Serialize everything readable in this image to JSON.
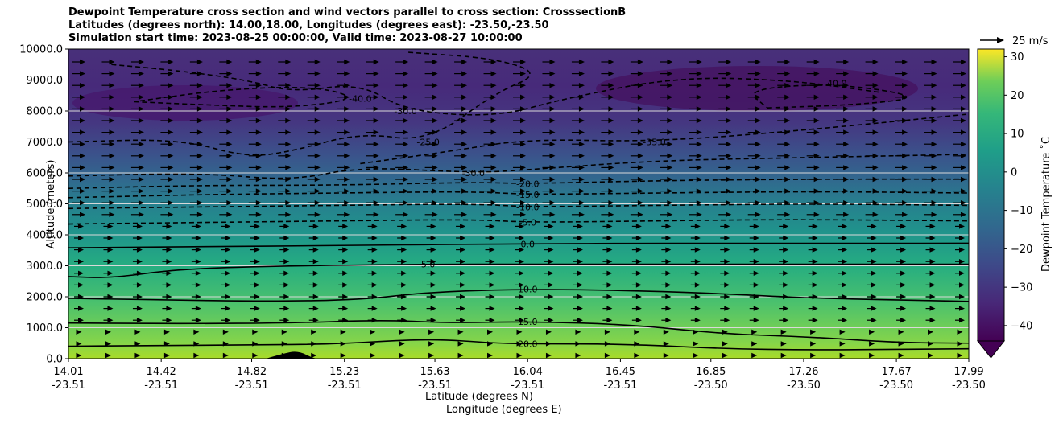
{
  "chart_data": {
    "type": "heatmap",
    "title_lines": [
      "Dewpoint Temperature cross section and wind vectors parallel to cross section: CrosssectionB",
      "Latitudes (degrees north): 14.00,18.00, Longitudes (degrees east): -23.50,-23.50",
      "Simulation start time: 2023-08-25 00:00:00, Valid time: 2023-08-27 10:00:00"
    ],
    "xlabel_lat": "Latitude (degrees N)",
    "xlabel_lon": "Longitude (degrees E)",
    "ylabel": "Altitude (meters)",
    "ylim": [
      0,
      10000
    ],
    "yticks": [
      "0.0",
      "1000.0",
      "2000.0",
      "3000.0",
      "4000.0",
      "5000.0",
      "6000.0",
      "7000.0",
      "8000.0",
      "9000.0",
      "10000.0"
    ],
    "xticks_lat": [
      "14.01",
      "14.42",
      "14.82",
      "15.23",
      "15.63",
      "16.04",
      "16.45",
      "16.85",
      "17.26",
      "17.67",
      "17.99"
    ],
    "xticks_lon": [
      "-23.51",
      "-23.51",
      "-23.51",
      "-23.51",
      "-23.51",
      "-23.51",
      "-23.51",
      "-23.50",
      "-23.50",
      "-23.50",
      "-23.50"
    ],
    "x_range": [
      14.01,
      17.99
    ],
    "colorbar": {
      "label": "Dewpoint Temperature ˚C",
      "range": [
        -44,
        32
      ],
      "ticks": [
        "30",
        "20",
        "10",
        "0",
        "−10",
        "−20",
        "−30",
        "−40"
      ],
      "tick_values": [
        30,
        20,
        10,
        0,
        -10,
        -20,
        -30,
        -40
      ]
    },
    "quiver_key": "25 m/s",
    "contours": [
      {
        "level": 20,
        "label": "20.0",
        "style": "solid",
        "points": [
          [
            14.01,
            400
          ],
          [
            14.3,
            420
          ],
          [
            14.8,
            440
          ],
          [
            15.2,
            470
          ],
          [
            15.6,
            650
          ],
          [
            15.9,
            500
          ],
          [
            16.04,
            480
          ],
          [
            16.5,
            470
          ],
          [
            16.9,
            320
          ],
          [
            17.3,
            280
          ],
          [
            17.67,
            300
          ],
          [
            17.99,
            320
          ]
        ]
      },
      {
        "level": 15,
        "label": "15.0",
        "style": "solid",
        "points": [
          [
            14.01,
            1150
          ],
          [
            14.5,
            1130
          ],
          [
            15.0,
            1150
          ],
          [
            15.4,
            1250
          ],
          [
            15.7,
            1150
          ],
          [
            16.04,
            1200
          ],
          [
            16.5,
            1100
          ],
          [
            16.9,
            800
          ],
          [
            17.3,
            700
          ],
          [
            17.67,
            520
          ],
          [
            17.99,
            500
          ]
        ]
      },
      {
        "level": 10,
        "label": "10.0",
        "style": "solid",
        "points": [
          [
            14.01,
            1950
          ],
          [
            14.4,
            1900
          ],
          [
            14.9,
            1850
          ],
          [
            15.3,
            1900
          ],
          [
            15.6,
            2150
          ],
          [
            16.04,
            2250
          ],
          [
            16.5,
            2200
          ],
          [
            16.9,
            2100
          ],
          [
            17.3,
            1950
          ],
          [
            17.99,
            1850
          ]
        ]
      },
      {
        "level": 5,
        "label": "5.0",
        "style": "solid",
        "points": [
          [
            14.01,
            2650
          ],
          [
            14.2,
            2600
          ],
          [
            14.5,
            2900
          ],
          [
            15.0,
            3000
          ],
          [
            15.6,
            3050
          ],
          [
            16.04,
            3050
          ],
          [
            16.5,
            3050
          ],
          [
            17.0,
            3050
          ],
          [
            17.99,
            3050
          ]
        ]
      },
      {
        "level": 0,
        "label": "0.0",
        "style": "solid",
        "points": [
          [
            14.01,
            3580
          ],
          [
            14.6,
            3620
          ],
          [
            15.2,
            3650
          ],
          [
            15.8,
            3700
          ],
          [
            16.04,
            3700
          ],
          [
            16.5,
            3730
          ],
          [
            17.2,
            3720
          ],
          [
            17.99,
            3730
          ]
        ]
      },
      {
        "level": -5,
        "label": "-5.0",
        "style": "dashed",
        "points": [
          [
            14.01,
            4350
          ],
          [
            14.6,
            4400
          ],
          [
            15.2,
            4450
          ],
          [
            15.8,
            4500
          ],
          [
            16.04,
            4400
          ],
          [
            16.6,
            4450
          ],
          [
            17.2,
            4500
          ],
          [
            17.99,
            4450
          ]
        ]
      },
      {
        "level": -10,
        "label": "-10.0",
        "style": "dashed",
        "points": [
          [
            14.01,
            4850
          ],
          [
            14.6,
            4900
          ],
          [
            15.2,
            4950
          ],
          [
            15.8,
            5000
          ],
          [
            16.04,
            4900
          ],
          [
            16.6,
            4950
          ],
          [
            17.3,
            5000
          ],
          [
            17.99,
            4950
          ]
        ]
      },
      {
        "level": -15,
        "label": "-15.0",
        "style": "dashed",
        "points": [
          [
            14.01,
            5200
          ],
          [
            14.6,
            5300
          ],
          [
            15.2,
            5350
          ],
          [
            15.8,
            5400
          ],
          [
            16.04,
            5300
          ],
          [
            16.6,
            5350
          ],
          [
            17.3,
            5400
          ],
          [
            17.99,
            5350
          ]
        ]
      },
      {
        "level": -20,
        "label": "-20.0",
        "style": "dashed",
        "points": [
          [
            14.01,
            5500
          ],
          [
            14.6,
            5600
          ],
          [
            15.2,
            5600
          ],
          [
            15.8,
            5700
          ],
          [
            16.04,
            5650
          ],
          [
            16.6,
            5750
          ],
          [
            17.3,
            5800
          ],
          [
            17.99,
            5800
          ]
        ]
      },
      {
        "level": -30,
        "label": "-30.0",
        "style": "dashed",
        "points": [
          [
            14.01,
            5900
          ],
          [
            14.6,
            6000
          ],
          [
            15.0,
            5750
          ],
          [
            15.3,
            6200
          ],
          [
            15.8,
            6000
          ],
          [
            16.04,
            6100
          ],
          [
            16.6,
            6400
          ],
          [
            17.3,
            6500
          ],
          [
            17.99,
            6600
          ]
        ]
      },
      {
        "level": -35,
        "label": "-35.0",
        "style": "dashed",
        "points": [
          [
            15.3,
            6300
          ],
          [
            15.7,
            6700
          ],
          [
            16.04,
            7100
          ],
          [
            16.6,
            7000
          ],
          [
            17.3,
            7400
          ],
          [
            17.99,
            7900
          ]
        ]
      },
      {
        "level": -25,
        "label": "-25.0",
        "style": "dashed",
        "points": [
          [
            14.01,
            7000
          ],
          [
            14.5,
            7100
          ],
          [
            14.8,
            6500
          ],
          [
            15.0,
            6700
          ],
          [
            15.3,
            7300
          ],
          [
            15.6,
            7000
          ],
          [
            15.9,
            8600
          ],
          [
            16.1,
            9200
          ],
          [
            15.9,
            9700
          ],
          [
            15.5,
            9900
          ]
        ]
      },
      {
        "level": -30,
        "label": "-30.0",
        "style": "dashed",
        "points": [
          [
            14.2,
            9500
          ],
          [
            14.5,
            9300
          ],
          [
            14.8,
            9000
          ],
          [
            15.0,
            8600
          ],
          [
            15.3,
            8900
          ],
          [
            15.5,
            8000
          ],
          [
            15.9,
            7800
          ],
          [
            16.2,
            8400
          ],
          [
            16.7,
            9100
          ],
          [
            17.2,
            9000
          ],
          [
            17.6,
            8600
          ]
        ]
      },
      {
        "level": -40,
        "label": "-40.0",
        "style": "dashed",
        "points": [
          [
            14.3,
            8300
          ],
          [
            14.6,
            8200
          ],
          [
            15.0,
            8100
          ],
          [
            15.3,
            8400
          ],
          [
            15.1,
            8800
          ],
          [
            14.7,
            8700
          ],
          [
            14.3,
            8300
          ]
        ]
      },
      {
        "level": -40,
        "label": "-40.0",
        "style": "dashed",
        "points": [
          [
            17.1,
            8100
          ],
          [
            17.5,
            8200
          ],
          [
            17.8,
            8450
          ],
          [
            17.4,
            8900
          ],
          [
            17.0,
            8700
          ],
          [
            17.1,
            8100
          ]
        ]
      }
    ]
  }
}
